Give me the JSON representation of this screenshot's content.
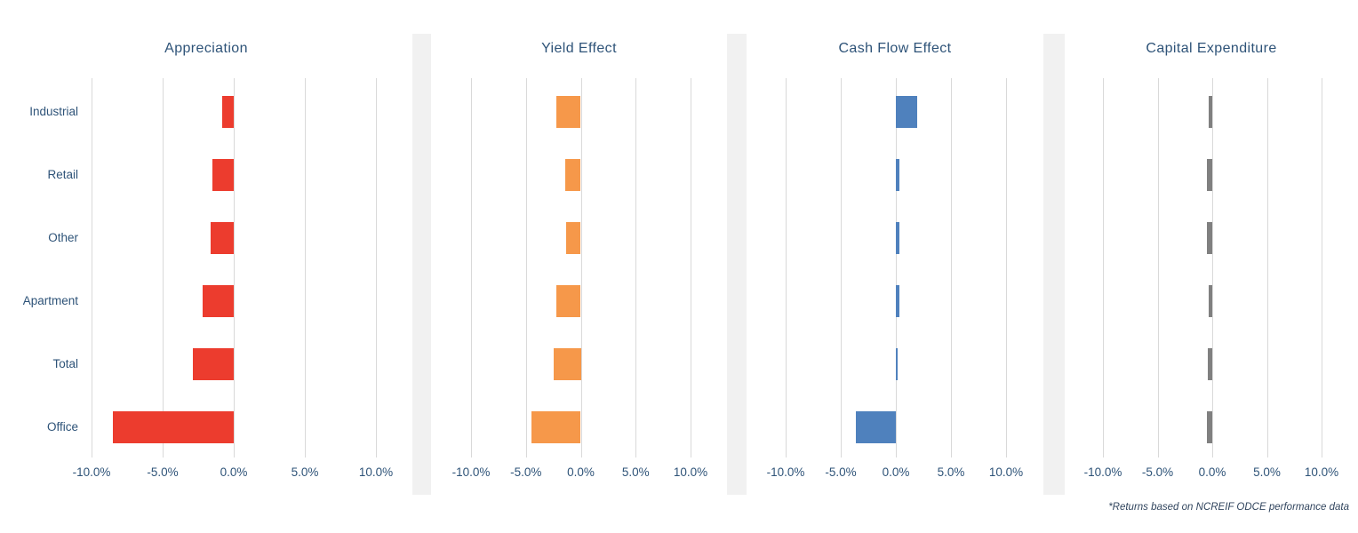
{
  "colors": {
    "text": "#2E5378",
    "gridline": "#D9D9D9",
    "divider_strip": "#F1F1F1",
    "background": "#FFFFFF",
    "footnote_text": "#31455E"
  },
  "footnote": "*Returns based on NCREIF ODCE performance data",
  "chart_data": {
    "type": "bar",
    "orientation": "horizontal",
    "grid": true,
    "categories": [
      "Industrial",
      "Retail",
      "Other",
      "Apartment",
      "Total",
      "Office"
    ],
    "x_tick_labels": [
      "-10.0%",
      "-5.0%",
      "0.0%",
      "5.0%",
      "10.0%"
    ],
    "x_tick_values": [
      -10,
      -5,
      0,
      5,
      10
    ],
    "xlim": [
      -10,
      10
    ],
    "value_unit": "%",
    "panels": [
      {
        "title": "Appreciation",
        "color": "#EC3C2E",
        "values": [
          -0.8,
          -1.5,
          -1.6,
          -2.2,
          -2.9,
          -8.5
        ]
      },
      {
        "title": "Yield Effect",
        "color": "#F6984A",
        "values": [
          -2.2,
          -1.4,
          -1.3,
          -2.2,
          -2.5,
          -4.5
        ]
      },
      {
        "title": "Cash Flow Effect",
        "color": "#4F81BD",
        "values": [
          1.9,
          0.3,
          0.3,
          0.3,
          0.2,
          -3.6
        ]
      },
      {
        "title": "Capital Expenditure",
        "color": "#808080",
        "values": [
          -0.3,
          -0.5,
          -0.5,
          -0.3,
          -0.4,
          -0.5
        ]
      }
    ],
    "footnote": "*Returns based on NCREIF ODCE performance data"
  }
}
